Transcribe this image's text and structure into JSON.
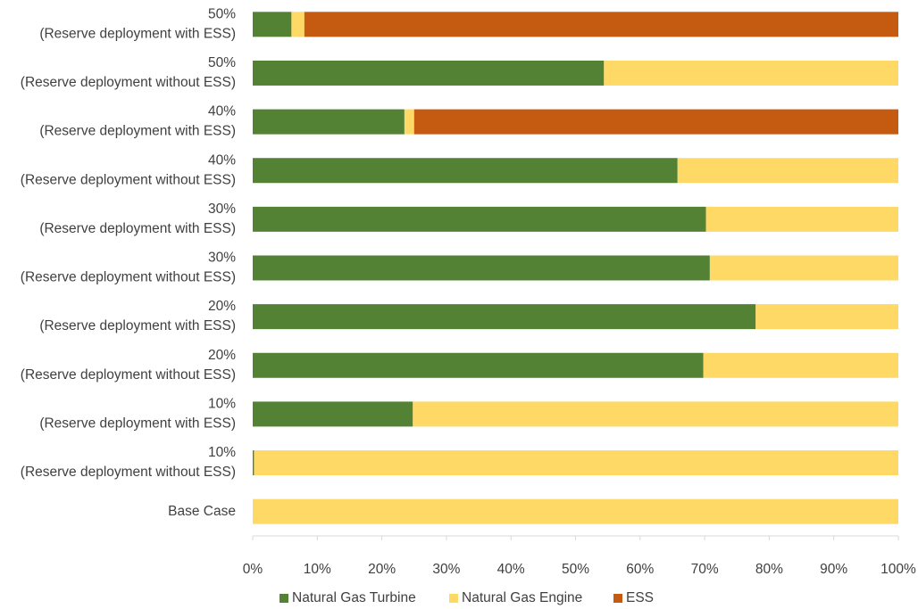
{
  "chart_data": {
    "type": "bar",
    "orientation": "horizontal",
    "stacked": "percent",
    "categories": [
      [
        "50%",
        "(Reserve deployment with ESS)"
      ],
      [
        "50%",
        "(Reserve deployment without ESS)"
      ],
      [
        "40%",
        "(Reserve deployment with ESS)"
      ],
      [
        "40%",
        "(Reserve deployment without ESS)"
      ],
      [
        "30%",
        "(Reserve deployment with ESS)"
      ],
      [
        "30%",
        "(Reserve deployment without ESS)"
      ],
      [
        "20%",
        "(Reserve deployment with ESS)"
      ],
      [
        "20%",
        "(Reserve deployment without ESS)"
      ],
      [
        "10%",
        "(Reserve deployment with ESS)"
      ],
      [
        "10%",
        "(Reserve deployment without ESS)"
      ],
      [
        "Base Case"
      ]
    ],
    "series": [
      {
        "name": "Natural Gas Turbine",
        "color": "#548235",
        "values": [
          6,
          54.4,
          23.5,
          65.8,
          70.2,
          70.8,
          77.9,
          69.8,
          24.8,
          0.2,
          0
        ]
      },
      {
        "name": "Natural Gas Engine",
        "color": "#ffd966",
        "values": [
          2,
          45.6,
          1.5,
          34.2,
          29.8,
          29.2,
          22.1,
          30.2,
          75.2,
          99.8,
          100
        ]
      },
      {
        "name": "ESS",
        "color": "#c55a11",
        "values": [
          92,
          0,
          75,
          0,
          0,
          0,
          0,
          0,
          0,
          0,
          0
        ]
      }
    ],
    "x_ticks": [
      "0%",
      "10%",
      "20%",
      "30%",
      "40%",
      "50%",
      "60%",
      "70%",
      "80%",
      "90%",
      "100%"
    ],
    "xlim": [
      0,
      100
    ],
    "grid": false,
    "legend_position": "bottom",
    "title": "",
    "xlabel": "",
    "ylabel": ""
  }
}
